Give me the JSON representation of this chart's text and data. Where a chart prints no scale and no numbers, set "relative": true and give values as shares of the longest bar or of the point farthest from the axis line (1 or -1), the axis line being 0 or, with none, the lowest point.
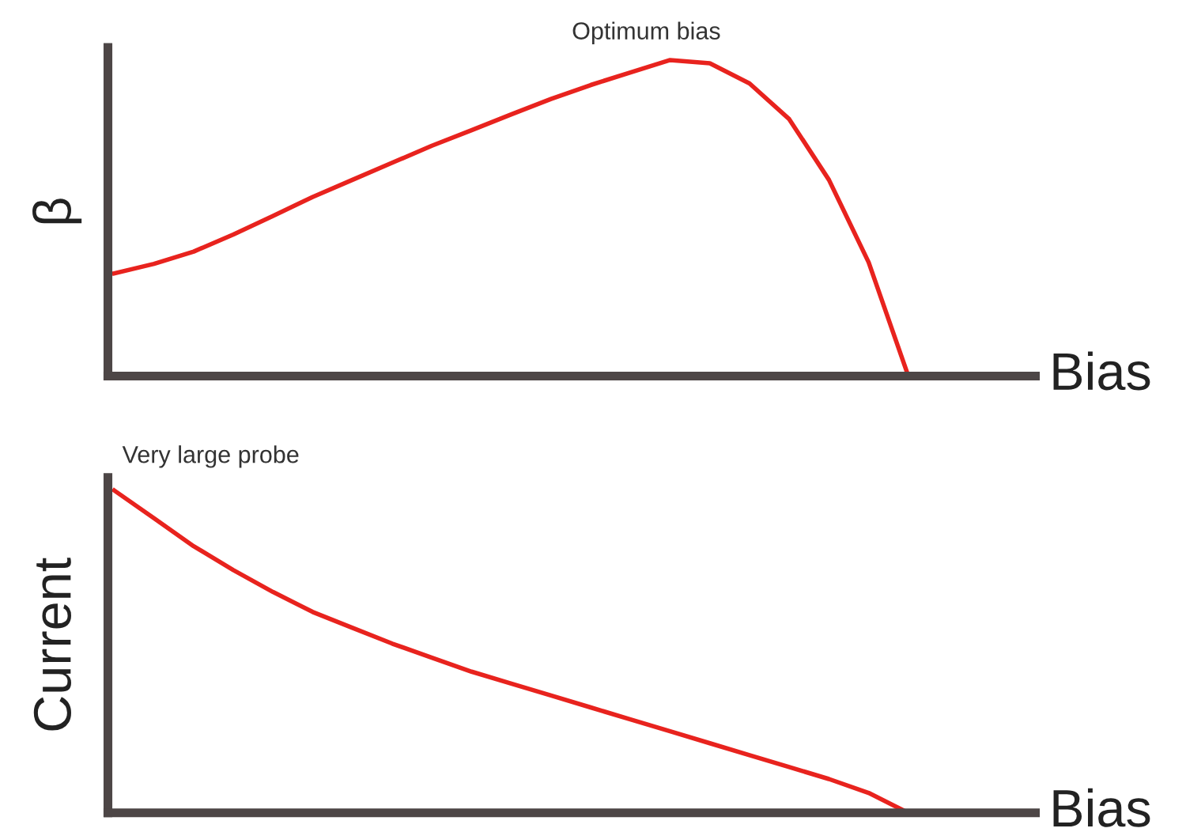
{
  "chart_data": [
    {
      "type": "line",
      "relative": true,
      "ylabel": "β",
      "xlabel": "Bias",
      "annotations": [
        "Optimum bias"
      ],
      "tick_labels": false,
      "marker": "none",
      "line_style": "solid",
      "categories": [
        null,
        null,
        null,
        null,
        null,
        null,
        null,
        null,
        null,
        null,
        null,
        null,
        null,
        null,
        null,
        null,
        null,
        null,
        null,
        null,
        null,
        null,
        null,
        null
      ],
      "series": [
        {
          "color": "#e8231e",
          "values": [
            0.325,
            0.355,
            0.394,
            0.448,
            0.507,
            0.567,
            0.621,
            0.675,
            0.729,
            0.778,
            0.828,
            0.877,
            0.921,
            0.961,
            1.0,
            0.99,
            0.926,
            0.813,
            0.621,
            0.36,
            0,
            null,
            null,
            null
          ]
        }
      ]
    },
    {
      "type": "line",
      "relative": true,
      "ylabel": "Current",
      "xlabel": "Bias",
      "annotations": [
        "Very large probe"
      ],
      "tick_labels": false,
      "marker": "none",
      "line_style": "solid",
      "categories": [
        null,
        null,
        null,
        null,
        null,
        null,
        null,
        null,
        null,
        null,
        null,
        null,
        null,
        null,
        null,
        null,
        null,
        null,
        null,
        null,
        null,
        null,
        null,
        null
      ],
      "series": [
        {
          "color": "#e8231e",
          "values": [
            1.0,
            0.914,
            0.827,
            0.753,
            0.685,
            0.623,
            0.574,
            0.525,
            0.481,
            0.438,
            0.401,
            0.364,
            0.327,
            0.29,
            0.253,
            0.216,
            0.179,
            0.142,
            0.105,
            0.062,
            0,
            null,
            null,
            null
          ]
        }
      ]
    }
  ]
}
